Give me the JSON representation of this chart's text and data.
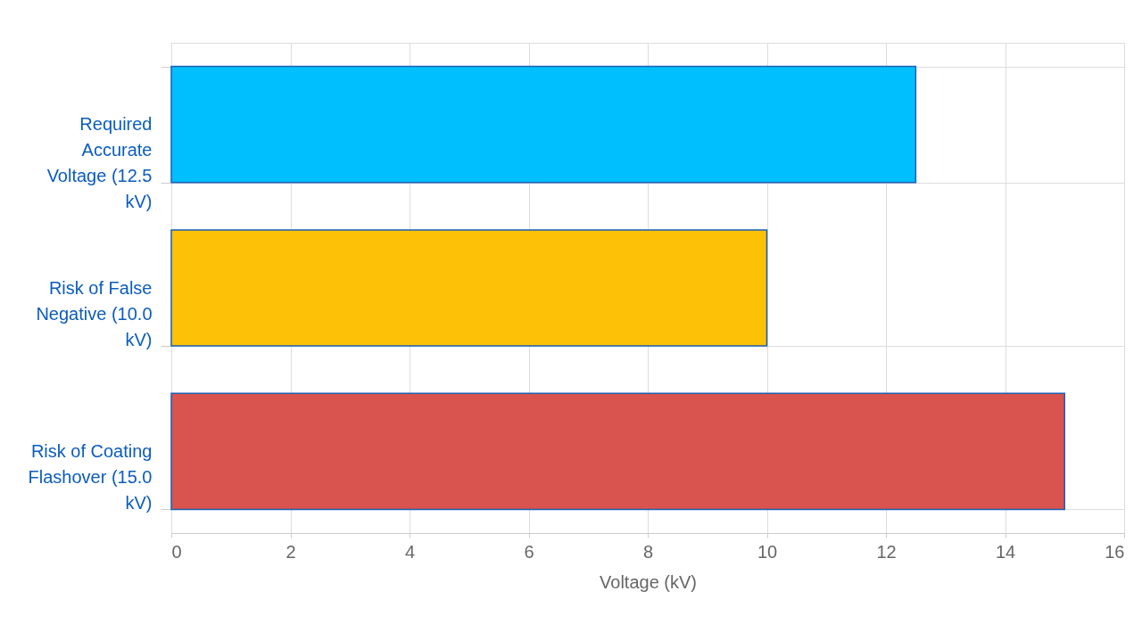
{
  "chart_data": {
    "type": "bar",
    "orientation": "horizontal",
    "xlabel": "Voltage (kV)",
    "categories": [
      "Required Accurate Voltage (12.5 kV)",
      "Risk of False Negative (10.0 kV)",
      "Risk of Coating Flashover (15.0 kV)"
    ],
    "values": [
      12.5,
      10,
      15
    ],
    "colors": [
      "#00bfff",
      "#fdc108",
      "#d9534f"
    ],
    "xlim": [
      0,
      16
    ],
    "xticks": [
      0,
      2,
      4,
      6,
      8,
      10,
      12,
      14,
      16
    ],
    "grid": true,
    "legend": false
  }
}
